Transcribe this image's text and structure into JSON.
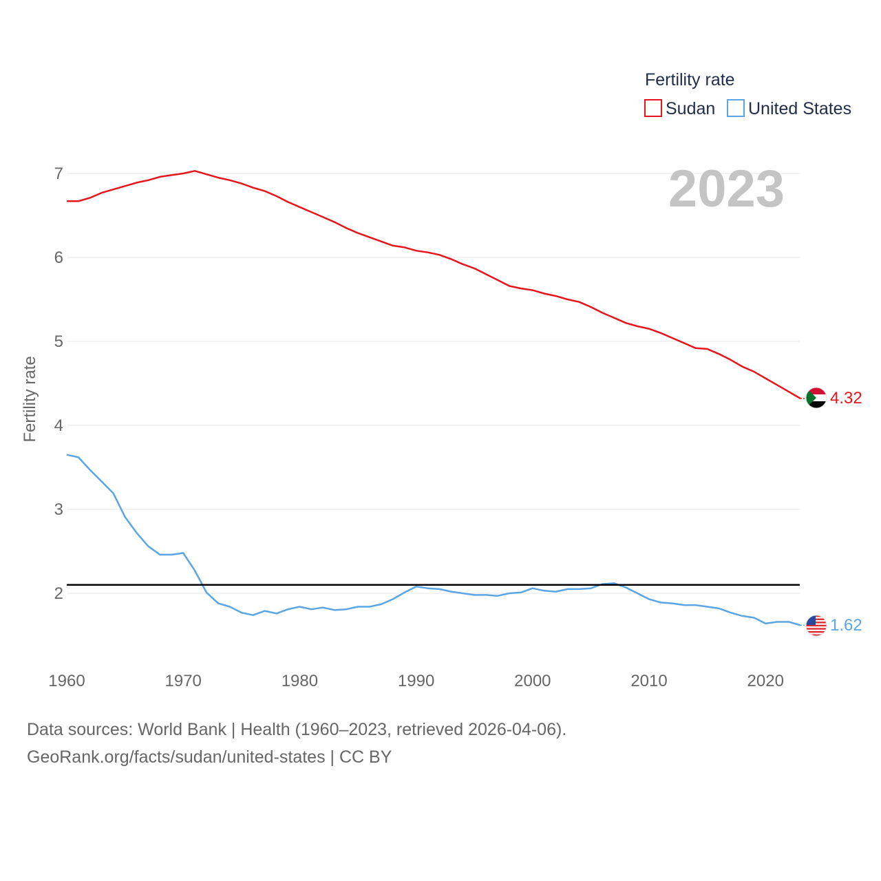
{
  "chart_data": {
    "type": "line",
    "title": "Fertility rate",
    "ylabel": "Fertility rate",
    "xlabel": "",
    "xlim": [
      1960,
      2023
    ],
    "ylim": [
      1.2,
      7.2
    ],
    "x_ticks": [
      1960,
      1970,
      1980,
      1990,
      2000,
      2010,
      2020
    ],
    "y_ticks": [
      2,
      3,
      4,
      5,
      6,
      7
    ],
    "year_label": "2023",
    "reference_line": {
      "value": 2.1,
      "color": "#000000"
    },
    "legend": {
      "title": "Fertility rate",
      "placement": "top-right"
    },
    "x": [
      1960,
      1961,
      1962,
      1963,
      1964,
      1965,
      1966,
      1967,
      1968,
      1969,
      1970,
      1971,
      1972,
      1973,
      1974,
      1975,
      1976,
      1977,
      1978,
      1979,
      1980,
      1981,
      1982,
      1983,
      1984,
      1985,
      1986,
      1987,
      1988,
      1989,
      1990,
      1991,
      1992,
      1993,
      1994,
      1995,
      1996,
      1997,
      1998,
      1999,
      2000,
      2001,
      2002,
      2003,
      2004,
      2005,
      2006,
      2007,
      2008,
      2009,
      2010,
      2011,
      2012,
      2013,
      2014,
      2015,
      2016,
      2017,
      2018,
      2019,
      2020,
      2021,
      2022,
      2023
    ],
    "series": [
      {
        "name": "Sudan",
        "color": "#e8141b",
        "end_label": "4.32",
        "values": [
          6.67,
          6.67,
          6.71,
          6.77,
          6.81,
          6.85,
          6.89,
          6.92,
          6.96,
          6.98,
          7.0,
          7.03,
          6.99,
          6.95,
          6.92,
          6.88,
          6.83,
          6.79,
          6.73,
          6.66,
          6.6,
          6.54,
          6.48,
          6.42,
          6.35,
          6.29,
          6.24,
          6.19,
          6.14,
          6.12,
          6.08,
          6.06,
          6.03,
          5.98,
          5.92,
          5.87,
          5.8,
          5.73,
          5.66,
          5.63,
          5.61,
          5.57,
          5.54,
          5.5,
          5.47,
          5.41,
          5.34,
          5.28,
          5.22,
          5.18,
          5.15,
          5.1,
          5.04,
          4.98,
          4.92,
          4.91,
          4.85,
          4.78,
          4.7,
          4.64,
          4.56,
          4.48,
          4.4,
          4.32
        ]
      },
      {
        "name": "United States",
        "color": "#5aa5e6",
        "end_label": "1.62",
        "values": [
          3.65,
          3.62,
          3.47,
          3.33,
          3.19,
          2.91,
          2.72,
          2.56,
          2.46,
          2.46,
          2.48,
          2.27,
          2.01,
          1.88,
          1.84,
          1.77,
          1.74,
          1.79,
          1.76,
          1.81,
          1.84,
          1.81,
          1.83,
          1.8,
          1.81,
          1.84,
          1.84,
          1.87,
          1.93,
          2.01,
          2.08,
          2.06,
          2.05,
          2.02,
          2.0,
          1.98,
          1.98,
          1.97,
          2.0,
          2.01,
          2.06,
          2.03,
          2.02,
          2.05,
          2.05,
          2.06,
          2.11,
          2.12,
          2.07,
          2.0,
          1.93,
          1.89,
          1.88,
          1.86,
          1.86,
          1.84,
          1.82,
          1.77,
          1.73,
          1.71,
          1.64,
          1.66,
          1.66,
          1.62
        ]
      }
    ]
  },
  "footer": {
    "line1": "Data sources: World Bank | Health (1960–2023, retrieved 2026-04-06).",
    "line2": "GeoRank.org/facts/sudan/united-states | CC BY"
  }
}
